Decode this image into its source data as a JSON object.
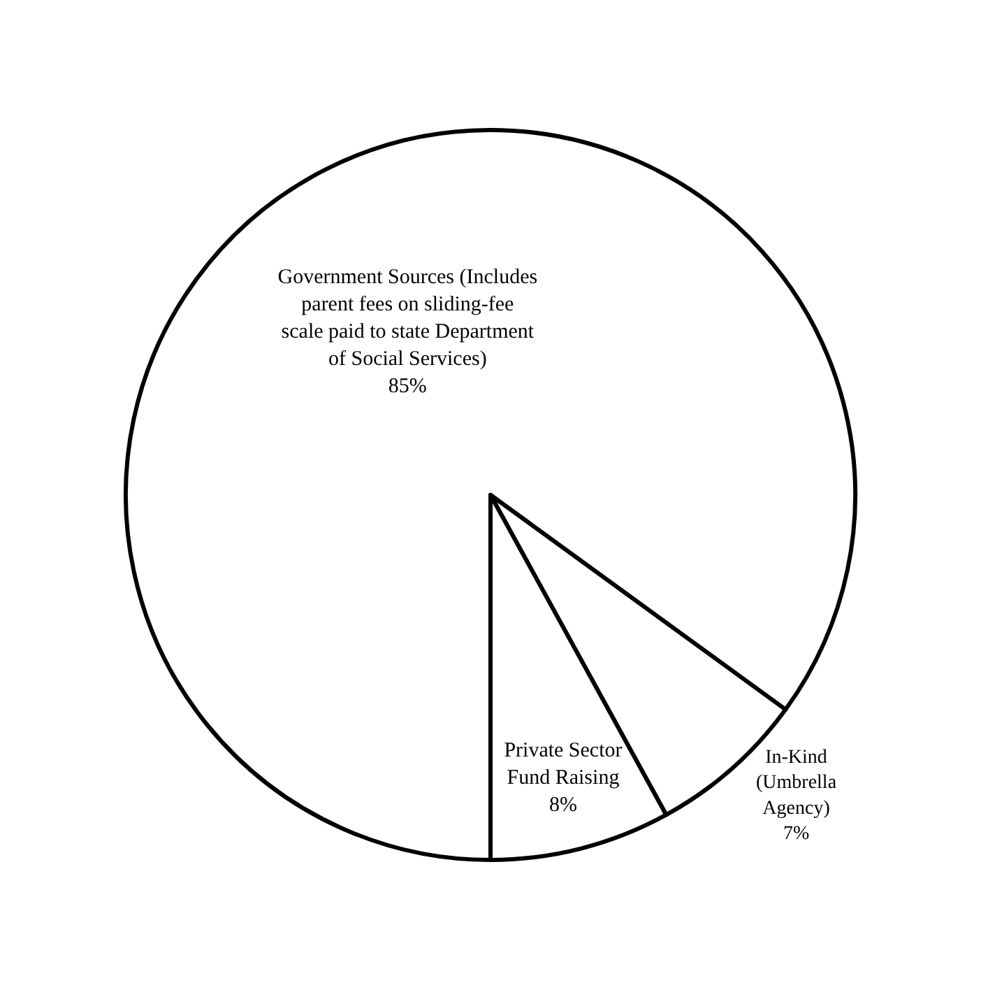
{
  "chart_data": {
    "type": "pie",
    "categories": [
      "Government Sources (Includes parent fees on sliding-fee scale paid to state Department of Social Services)",
      "In-Kind (Umbrella Agency)",
      "Private Sector Fund Raising"
    ],
    "values": [
      85,
      7,
      8
    ],
    "value_labels": [
      "85%",
      "7%",
      "8%"
    ],
    "colors": [
      "#ffffff",
      "#ffffff",
      "#ffffff"
    ],
    "legend": false
  }
}
